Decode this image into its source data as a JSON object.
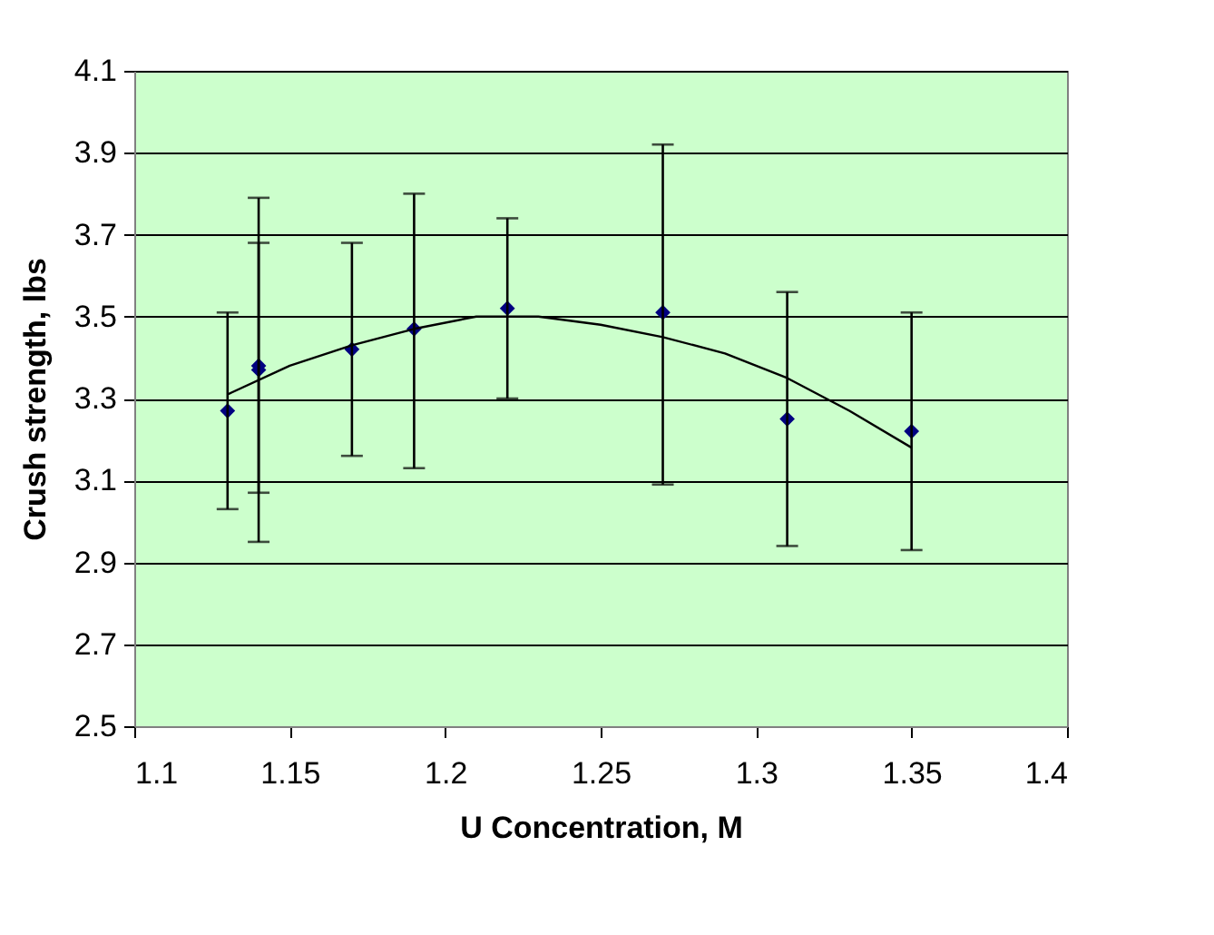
{
  "chart_data": {
    "type": "scatter",
    "xlabel": "U Concentration, M",
    "ylabel": "Crush strength, lbs",
    "xlim": [
      1.1,
      1.4
    ],
    "xticks": [
      1.1,
      1.15,
      1.2,
      1.25,
      1.3,
      1.35,
      1.4
    ],
    "ylim": [
      2.5,
      4.1
    ],
    "yticks": [
      2.5,
      2.7,
      2.9,
      3.1,
      3.3,
      3.5,
      3.7,
      3.9,
      4.1
    ],
    "grid": "y",
    "legend": false,
    "marker": "diamond",
    "series": [
      {
        "color": "#000080",
        "x": [
          1.13,
          1.14,
          1.14,
          1.17,
          1.19,
          1.22,
          1.27,
          1.31,
          1.35
        ],
        "values": [
          3.27,
          3.38,
          3.37,
          3.42,
          3.47,
          3.52,
          3.51,
          3.25,
          3.22
        ],
        "errors": [
          [
            3.03,
            3.51
          ],
          [
            3.07,
            3.68
          ],
          [
            2.95,
            3.79
          ],
          [
            3.16,
            3.68
          ],
          [
            3.13,
            3.8
          ],
          [
            3.3,
            3.74
          ],
          [
            3.09,
            3.92
          ],
          [
            2.94,
            3.56
          ],
          [
            2.93,
            3.51
          ]
        ]
      },
      {
        "type": "line",
        "color": "#000000",
        "marker": "none",
        "x": [
          1.13,
          1.15,
          1.17,
          1.19,
          1.21,
          1.23,
          1.25,
          1.27,
          1.29,
          1.31,
          1.33,
          1.35
        ],
        "values": [
          3.31,
          3.38,
          3.43,
          3.47,
          3.5,
          3.5,
          3.48,
          3.45,
          3.41,
          3.35,
          3.27,
          3.18
        ]
      }
    ]
  }
}
